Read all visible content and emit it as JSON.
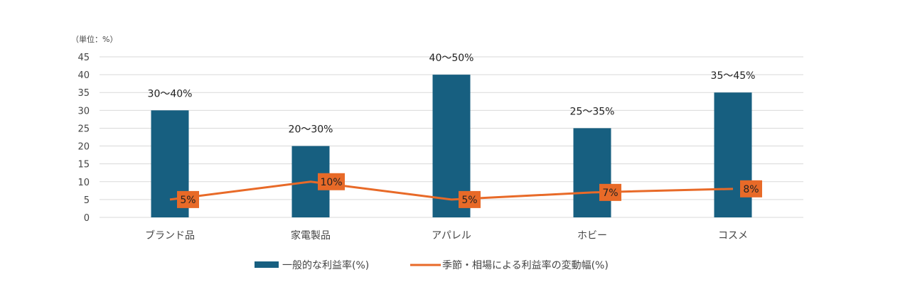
{
  "chart_data": {
    "type": "bar",
    "unit_note": "（単位：%）",
    "categories": [
      "ブランド品",
      "家電製品",
      "アパレル",
      "ホビー",
      "コスメ"
    ],
    "ylim": [
      0,
      45
    ],
    "yticks": [
      "0",
      "5",
      "10",
      "15",
      "20",
      "25",
      "30",
      "35",
      "40",
      "45"
    ],
    "grid": true,
    "legend_position": "bottom",
    "series": [
      {
        "name": "一般的な利益率(%)",
        "type": "bar",
        "color": "#175f80",
        "values": [
          30,
          20,
          40,
          25,
          35
        ],
        "data_labels": [
          "30〜40%",
          "20〜30%",
          "40〜50%",
          "25〜35%",
          "35〜45%"
        ]
      },
      {
        "name": "季節・相場による利益率の変動幅(%)",
        "type": "line",
        "color": "#e86a28",
        "values": [
          5,
          10,
          5,
          7,
          8
        ],
        "data_labels": [
          "5%",
          "10%",
          "5%",
          "7%",
          "8%"
        ]
      }
    ]
  }
}
